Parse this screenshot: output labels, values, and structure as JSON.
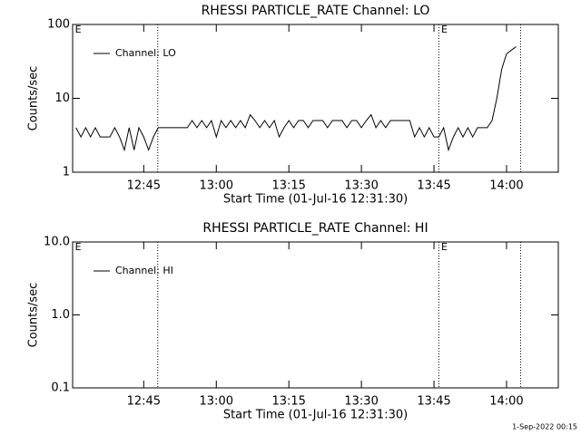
{
  "chart_data": [
    {
      "type": "line",
      "title": "RHESSI PARTICLE_RATE Channel: LO",
      "xlabel": "Start Time (01-Jul-16 12:31:30)",
      "ylabel": "Counts/sec",
      "x": [
        751,
        752,
        753,
        754,
        755,
        756,
        757,
        758,
        759,
        760,
        761,
        762,
        763,
        764,
        765,
        766,
        767,
        768,
        769,
        770,
        771,
        772,
        773,
        774,
        775,
        776,
        777,
        778,
        779,
        780,
        781,
        782,
        783,
        784,
        785,
        786,
        787,
        788,
        789,
        790,
        791,
        792,
        793,
        794,
        795,
        796,
        797,
        798,
        799,
        800,
        801,
        802,
        803,
        804,
        805,
        806,
        807,
        808,
        809,
        810,
        811,
        812,
        813,
        814,
        815,
        816,
        817,
        818,
        819,
        820,
        821,
        822,
        823,
        824,
        825,
        826,
        827,
        828,
        829,
        830,
        831,
        832,
        833,
        834,
        835,
        836,
        837,
        838,
        839,
        840,
        841,
        842
      ],
      "series": [
        {
          "name": "Channel: LO",
          "color": "#000000",
          "values": [
            4,
            3,
            4,
            3,
            4,
            3,
            3,
            3,
            4,
            3,
            2,
            4,
            2,
            4,
            3,
            2,
            3,
            4,
            4,
            4,
            4,
            4,
            4,
            4,
            5,
            4,
            5,
            4,
            5,
            3,
            5,
            4,
            5,
            4,
            5,
            4,
            6,
            5,
            4,
            5,
            4,
            5,
            3,
            4,
            5,
            4,
            5,
            5,
            4,
            5,
            5,
            5,
            4,
            5,
            5,
            5,
            4,
            5,
            5,
            4,
            5,
            6,
            4,
            5,
            4,
            5,
            5,
            5,
            5,
            5,
            3,
            4,
            3,
            4,
            3,
            3,
            4,
            2,
            3,
            4,
            3,
            4,
            3,
            4,
            4,
            4,
            5,
            10,
            25,
            40,
            45,
            50
          ]
        }
      ],
      "xlim": [
        750.3,
        850.7
      ],
      "xticks": [
        {
          "value": 765,
          "label": "12:45"
        },
        {
          "value": 780,
          "label": "13:00"
        },
        {
          "value": 795,
          "label": "13:15"
        },
        {
          "value": 810,
          "label": "13:30"
        },
        {
          "value": 825,
          "label": "13:45"
        },
        {
          "value": 840,
          "label": "14:00"
        }
      ],
      "ylim": [
        1,
        100
      ],
      "yticks": [
        1,
        10,
        100
      ],
      "log_y": true,
      "legend": "upper left",
      "vlines": [
        767.9,
        826.0,
        842.9
      ],
      "markers": [
        {
          "x": 750.8,
          "label": "E"
        },
        {
          "x": 826.5,
          "label": "E"
        }
      ]
    },
    {
      "type": "line",
      "title": "RHESSI PARTICLE_RATE Channel: HI",
      "xlabel": "Start Time (01-Jul-16 12:31:30)",
      "ylabel": "Counts/sec",
      "x": [],
      "series": [
        {
          "name": "Channel: HI",
          "color": "#000000",
          "values": []
        }
      ],
      "xlim": [
        750.3,
        850.7
      ],
      "xticks": [
        {
          "value": 765,
          "label": "12:45"
        },
        {
          "value": 780,
          "label": "13:00"
        },
        {
          "value": 795,
          "label": "13:15"
        },
        {
          "value": 810,
          "label": "13:30"
        },
        {
          "value": 825,
          "label": "13:45"
        },
        {
          "value": 840,
          "label": "14:00"
        }
      ],
      "ylim": [
        0.1,
        10
      ],
      "yticks": [
        0.1,
        {
          "value": 1,
          "label": "1.0"
        },
        {
          "value": 10,
          "label": "10.0"
        }
      ],
      "log_y": true,
      "legend": "upper left",
      "vlines": [
        767.9,
        826.0,
        842.9
      ],
      "markers": [
        {
          "x": 750.8,
          "label": "E"
        },
        {
          "x": 826.5,
          "label": "E"
        }
      ]
    }
  ],
  "footer": "1-Sep-2022 00:15"
}
